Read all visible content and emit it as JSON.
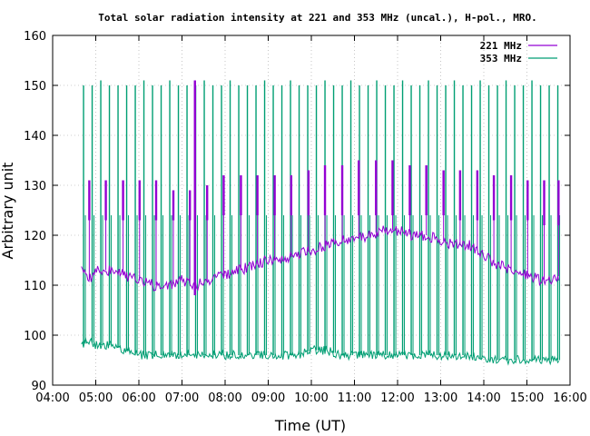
{
  "chart_data": {
    "type": "line",
    "title": "Total solar radiation intensity at 221 and 353 MHz (uncal.), H-pol., MRO.",
    "xlabel": "Time (UT)",
    "ylabel": "Arbitrary unit",
    "xlim": [
      "04:00",
      "16:00"
    ],
    "ylim": [
      90,
      160
    ],
    "x_ticks": [
      "04:00",
      "05:00",
      "06:00",
      "07:00",
      "08:00",
      "09:00",
      "10:00",
      "11:00",
      "12:00",
      "13:00",
      "14:00",
      "15:00",
      "16:00"
    ],
    "y_ticks": [
      90,
      100,
      110,
      120,
      130,
      140,
      150,
      160
    ],
    "grid": true,
    "legend_position": "top-right",
    "series": [
      {
        "name": "221 MHz",
        "color": "#9400d3",
        "baseline": {
          "x": [
            "04:40",
            "04:50",
            "05:00",
            "05:20",
            "05:40",
            "06:00",
            "06:20",
            "06:40",
            "07:00",
            "07:20",
            "07:40",
            "08:00",
            "08:20",
            "08:40",
            "09:00",
            "09:20",
            "09:40",
            "10:00",
            "10:20",
            "10:40",
            "11:00",
            "11:20",
            "11:40",
            "12:00",
            "12:20",
            "12:40",
            "13:00",
            "13:20",
            "13:40",
            "14:00",
            "14:20",
            "14:40",
            "15:00",
            "15:20",
            "15:40",
            "15:45"
          ],
          "y": [
            114,
            111,
            113,
            113,
            112,
            111,
            110,
            110,
            111,
            110,
            111,
            112,
            113,
            114,
            115,
            115,
            116,
            117,
            118,
            119,
            119,
            120,
            121,
            121,
            120,
            120,
            119,
            118,
            118,
            116,
            114,
            113,
            112,
            111,
            111,
            112
          ]
        },
        "spikes": {
          "x": [
            "04:51",
            "05:14",
            "05:38",
            "06:01",
            "06:24",
            "06:48",
            "07:11",
            "07:18",
            "07:35",
            "07:58",
            "08:22",
            "08:45",
            "09:09",
            "09:32",
            "09:56",
            "10:19",
            "10:43",
            "11:06",
            "11:30",
            "11:53",
            "12:17",
            "12:40",
            "13:04",
            "13:27",
            "13:51",
            "14:14",
            "14:38",
            "15:01",
            "15:24",
            "15:44"
          ],
          "high": [
            131,
            131,
            131,
            131,
            131,
            129,
            129,
            151,
            130,
            132,
            132,
            132,
            132,
            132,
            133,
            134,
            134,
            135,
            135,
            135,
            134,
            134,
            133,
            133,
            133,
            132,
            132,
            131,
            131,
            131
          ],
          "low": [
            123,
            123,
            123,
            123,
            123,
            123,
            123,
            108,
            123,
            124,
            124,
            124,
            124,
            124,
            124,
            124,
            124,
            124,
            124,
            124,
            124,
            124,
            124,
            123,
            123,
            123,
            123,
            123,
            122,
            122
          ]
        }
      },
      {
        "name": "353 MHz",
        "color": "#009e73",
        "baseline": {
          "x": [
            "04:40",
            "04:50",
            "05:00",
            "05:20",
            "05:40",
            "06:00",
            "06:20",
            "06:40",
            "07:00",
            "07:20",
            "07:40",
            "08:00",
            "08:20",
            "08:40",
            "09:00",
            "09:20",
            "09:40",
            "10:00",
            "10:20",
            "10:40",
            "11:00",
            "11:20",
            "11:40",
            "12:00",
            "12:20",
            "12:40",
            "13:00",
            "13:20",
            "13:40",
            "14:00",
            "14:20",
            "14:40",
            "15:00",
            "15:20",
            "15:40",
            "15:45"
          ],
          "y": [
            98,
            99,
            98,
            98,
            97,
            96,
            96,
            96,
            96,
            96,
            96,
            96,
            96,
            96,
            96,
            96,
            96,
            97,
            97,
            96,
            96,
            96,
            96,
            96,
            96,
            96,
            96,
            96,
            96,
            95,
            95,
            95,
            95,
            95,
            95,
            95
          ]
        },
        "spikes": {
          "x": [
            "04:43",
            "04:55",
            "05:07",
            "05:19",
            "05:31",
            "05:43",
            "05:55",
            "06:07",
            "06:19",
            "06:31",
            "06:43",
            "06:55",
            "07:07",
            "07:19",
            "07:31",
            "07:43",
            "07:55",
            "08:07",
            "08:19",
            "08:31",
            "08:43",
            "08:55",
            "09:07",
            "09:19",
            "09:31",
            "09:43",
            "09:55",
            "10:07",
            "10:19",
            "10:31",
            "10:43",
            "10:55",
            "11:07",
            "11:19",
            "11:31",
            "11:43",
            "11:55",
            "12:07",
            "12:19",
            "12:31",
            "12:43",
            "12:55",
            "13:07",
            "13:19",
            "13:31",
            "13:43",
            "13:55",
            "14:07",
            "14:19",
            "14:31",
            "14:43",
            "14:55",
            "15:07",
            "15:19",
            "15:31",
            "15:43"
          ],
          "high": [
            150,
            150,
            151,
            150,
            150,
            150,
            150,
            151,
            150,
            150,
            151,
            150,
            150,
            150,
            151,
            150,
            150,
            151,
            150,
            150,
            150,
            151,
            150,
            150,
            151,
            150,
            150,
            150,
            151,
            150,
            150,
            151,
            150,
            150,
            151,
            150,
            150,
            151,
            150,
            150,
            151,
            150,
            150,
            151,
            150,
            150,
            151,
            150,
            150,
            151,
            150,
            150,
            151,
            150,
            150,
            150
          ]
        }
      }
    ]
  }
}
